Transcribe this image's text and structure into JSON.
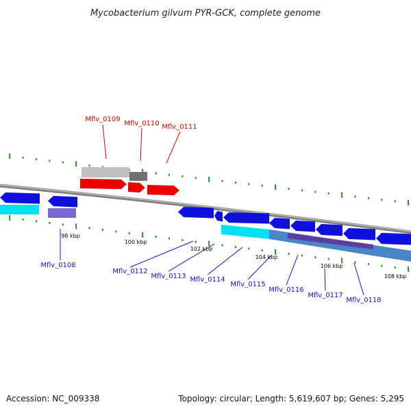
{
  "title": "Mycobacterium gilvum PYR-GCK, complete genome",
  "footer": {
    "accession": "Accession: NC_009338",
    "topology": "Topology: circular; Length: 5,619,607 bp; Genes: 5,295"
  },
  "colors": {
    "backbone": "#808080",
    "forward_gene": "#ee0000",
    "reverse_gene": "#1010dd",
    "forward_label": "#cc0000",
    "reverse_label": "#1010bb",
    "cds_feature": "#7b68d0",
    "rna_feature": "#00e0f0",
    "pseudo_feature": "#c0c0c0",
    "pseudo_dark": "#707070",
    "tick": "#2a8a2a"
  },
  "scale_labels": [
    "98 kbp",
    "100 kbp",
    "102 kbp",
    "104 kbp",
    "106 kbp",
    "108 kbp"
  ],
  "forward_genes": [
    "Mflv_0109",
    "Mflv_0110",
    "Mflv_0111"
  ],
  "reverse_genes": [
    "Mflv_0108",
    "Mflv_0112",
    "Mflv_0113",
    "Mflv_0114",
    "Mflv_0115",
    "Mflv_0116",
    "Mflv_0117",
    "Mflv_0118"
  ]
}
